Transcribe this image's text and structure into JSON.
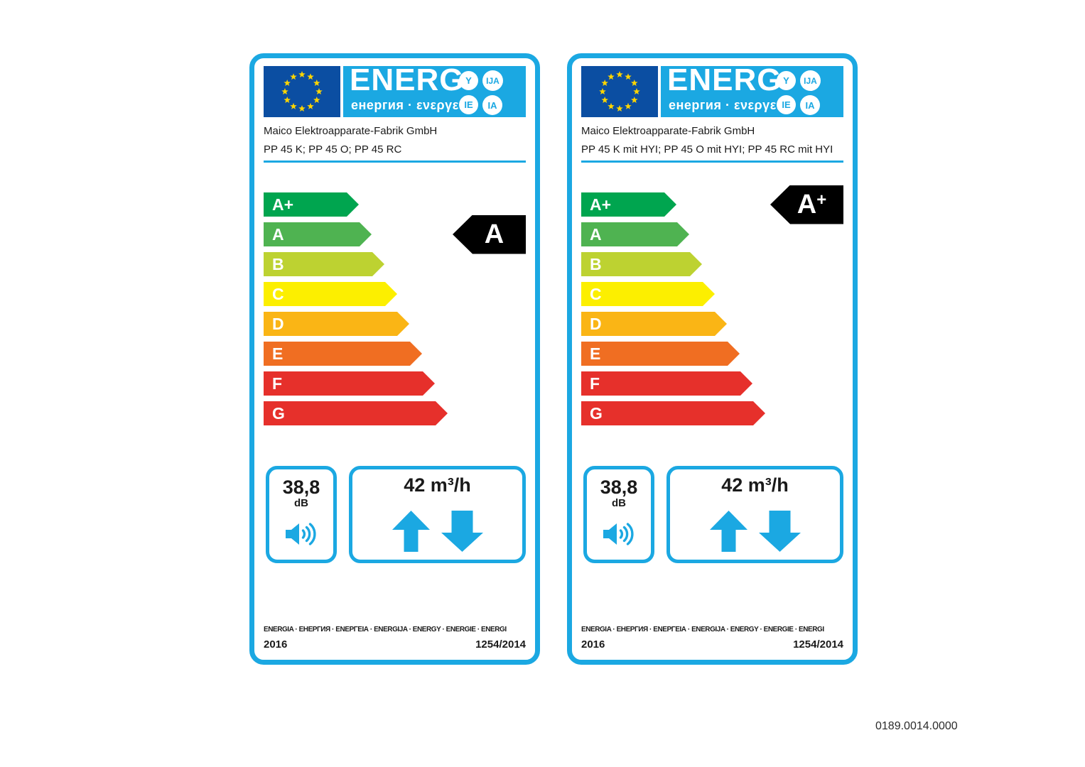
{
  "page": {
    "footnote": "0189.0014.0000"
  },
  "colors": {
    "accent": "#1BA8E2",
    "flag_blue": "#0B4EA2",
    "star_yellow": "#FFD500",
    "rating_bg": "#000000"
  },
  "labels": [
    {
      "banner": {
        "title": "ENERG",
        "subtitle": "енергия · ενεργεια",
        "circles": [
          "Y",
          "IJA",
          "IE",
          "IA"
        ]
      },
      "manufacturer": "Maico Elektroapparate-Fabrik GmbH",
      "model": "PP 45 K; PP 45 O; PP 45 RC",
      "classes": [
        {
          "label": "A+",
          "color": "#00A54F"
        },
        {
          "label": "A",
          "color": "#4FB351"
        },
        {
          "label": "B",
          "color": "#BDD231"
        },
        {
          "label": "C",
          "color": "#FCEF00"
        },
        {
          "label": "D",
          "color": "#FAB515"
        },
        {
          "label": "E",
          "color": "#F06E22"
        },
        {
          "label": "F",
          "color": "#E6302B"
        },
        {
          "label": "G",
          "color": "#E6302B"
        }
      ],
      "rating": {
        "letter": "A",
        "plus": "",
        "row": 1
      },
      "noise": {
        "value": "38,8",
        "unit": "dB"
      },
      "airflow": {
        "value": "42 m³/h"
      },
      "footer": {
        "languages": "ENERGIA · ЕНЕРГИЯ · ΕΝΕΡΓΕΙΑ · ENERGIJA · ENERGY · ENERGIE · ENERGI",
        "year": "2016",
        "regulation": "1254/2014"
      }
    },
    {
      "banner": {
        "title": "ENERG",
        "subtitle": "енергия · ενεργεια",
        "circles": [
          "Y",
          "IJA",
          "IE",
          "IA"
        ]
      },
      "manufacturer": "Maico Elektroapparate-Fabrik GmbH",
      "model": "PP 45 K mit HYI; PP 45 O mit HYI; PP 45 RC mit HYI",
      "classes": [
        {
          "label": "A+",
          "color": "#00A54F"
        },
        {
          "label": "A",
          "color": "#4FB351"
        },
        {
          "label": "B",
          "color": "#BDD231"
        },
        {
          "label": "C",
          "color": "#FCEF00"
        },
        {
          "label": "D",
          "color": "#FAB515"
        },
        {
          "label": "E",
          "color": "#F06E22"
        },
        {
          "label": "F",
          "color": "#E6302B"
        },
        {
          "label": "G",
          "color": "#E6302B"
        }
      ],
      "rating": {
        "letter": "A",
        "plus": "+",
        "row": 0
      },
      "noise": {
        "value": "38,8",
        "unit": "dB"
      },
      "airflow": {
        "value": "42 m³/h"
      },
      "footer": {
        "languages": "ENERGIA · ЕНЕРГИЯ · ΕΝΕΡΓΕΙΑ · ENERGIJA · ENERGY · ENERGIE · ENERGI",
        "year": "2016",
        "regulation": "1254/2014"
      }
    }
  ]
}
